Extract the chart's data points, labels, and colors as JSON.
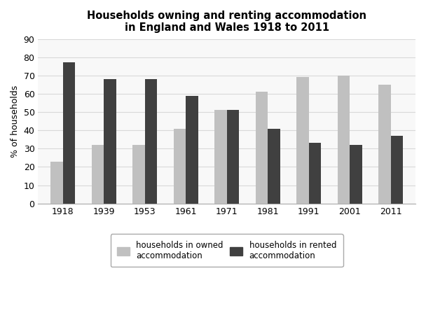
{
  "title": "Households owning and renting accommodation\nin England and Wales 1918 to 2011",
  "ylabel": "% of households",
  "years": [
    "1918",
    "1939",
    "1953",
    "1961",
    "1971",
    "1981",
    "1991",
    "2001",
    "2011"
  ],
  "owned": [
    23,
    32,
    32,
    41,
    51,
    61,
    69,
    70,
    65
  ],
  "rented": [
    77,
    68,
    68,
    59,
    51,
    41,
    33,
    32,
    37
  ],
  "owned_color": "#c0c0c0",
  "rented_color": "#404040",
  "ylim": [
    0,
    90
  ],
  "yticks": [
    0,
    10,
    20,
    30,
    40,
    50,
    60,
    70,
    80,
    90
  ],
  "bar_width": 0.3,
  "legend_owned": "households in owned\naccommodation",
  "legend_rented": "households in rented\naccommodation",
  "bg_color": "#ffffff",
  "plot_bg_color": "#f8f8f8",
  "grid_color": "#d8d8d8",
  "title_fontsize": 10.5,
  "axis_label_fontsize": 9,
  "tick_fontsize": 9,
  "legend_fontsize": 8.5
}
